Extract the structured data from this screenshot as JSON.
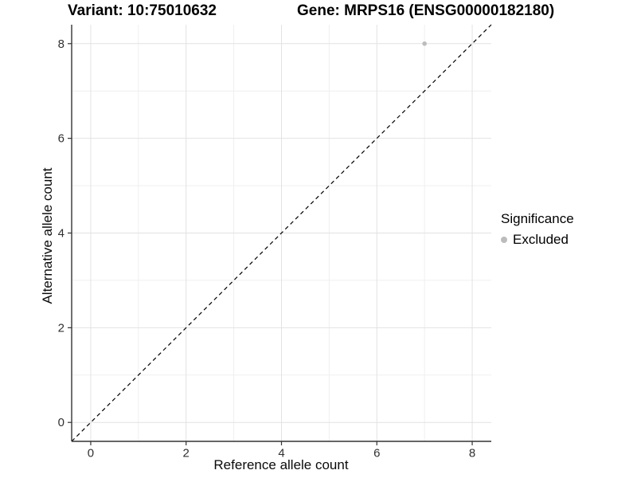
{
  "titles": {
    "variant": "Variant: 10:75010632",
    "gene": "Gene: MRPS16 (ENSG00000182180)"
  },
  "chart_data": {
    "type": "scatter",
    "xlabel": "Reference allele count",
    "ylabel": "Alternative allele count",
    "xlim": [
      -0.4,
      8.4
    ],
    "ylim": [
      -0.4,
      8.4
    ],
    "x_ticks": [
      0,
      2,
      4,
      6,
      8
    ],
    "y_ticks": [
      0,
      2,
      4,
      6,
      8
    ],
    "x_minor_ticks": [
      1,
      3,
      5,
      7
    ],
    "y_minor_ticks": [
      1,
      3,
      5,
      7
    ],
    "grid": true,
    "points": [
      {
        "x": 7,
        "y": 8,
        "significance": "Excluded"
      }
    ],
    "reference_line": {
      "type": "abline",
      "slope": 1,
      "intercept": 0,
      "style": "dashed"
    },
    "legend": {
      "title": "Significance",
      "position": "right",
      "entries": [
        {
          "label": "Excluded",
          "color": "#bcbcbc"
        }
      ]
    }
  },
  "colors": {
    "background": "#ffffff",
    "grid_major": "#e2e2e2",
    "grid_minor": "#efefef",
    "axis_line": "#333333",
    "tick_mark": "#333333",
    "tick_label": "#303030",
    "dashed_line": "#000000",
    "point": "#bcbcbc"
  }
}
